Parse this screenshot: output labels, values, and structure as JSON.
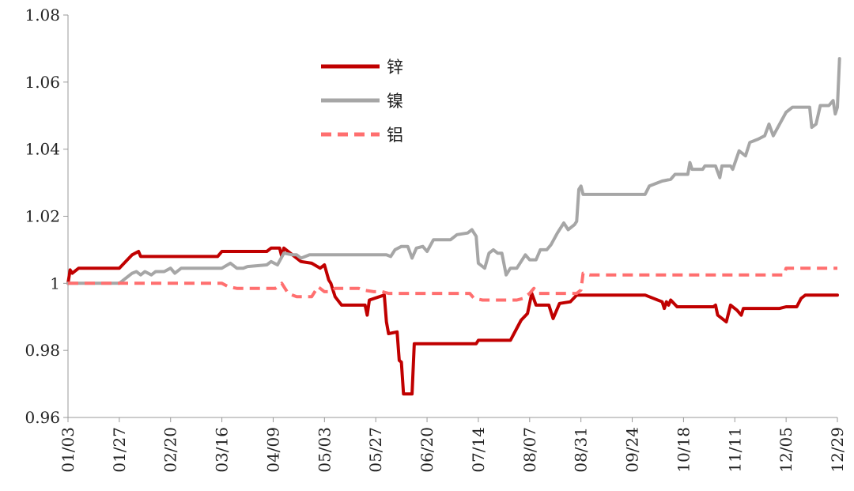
{
  "chart_data": {
    "type": "line",
    "title": "",
    "xlabel": "",
    "ylabel": "",
    "ylim": [
      0.96,
      1.08
    ],
    "yticks": [
      0.96,
      0.98,
      1,
      1.02,
      1.04,
      1.06,
      1.08
    ],
    "ytick_labels": [
      "0.96",
      "0.98",
      "1",
      "1.02",
      "1.04",
      "1.06",
      "1.08"
    ],
    "x_ticks": [
      "01/03",
      "01/27",
      "02/20",
      "03/16",
      "04/09",
      "05/03",
      "05/27",
      "06/20",
      "07/14",
      "08/07",
      "08/31",
      "09/24",
      "10/18",
      "11/11",
      "12/05",
      "12/29"
    ],
    "grid": false,
    "legend_position": "top-center",
    "series": [
      {
        "name": "锌",
        "color": "#c00000",
        "dash": "solid",
        "points": [
          [
            "01/03",
            1.0
          ],
          [
            "01/04",
            1.004
          ],
          [
            "01/05",
            1.003
          ],
          [
            "01/08",
            1.0045
          ],
          [
            "01/27",
            1.0045
          ],
          [
            "02/02",
            1.0085
          ],
          [
            "02/05",
            1.0095
          ],
          [
            "02/06",
            1.008
          ],
          [
            "03/14",
            1.008
          ],
          [
            "03/16",
            1.0095
          ],
          [
            "04/06",
            1.0095
          ],
          [
            "04/08",
            1.0105
          ],
          [
            "04/12",
            1.0105
          ],
          [
            "04/13",
            1.008
          ],
          [
            "04/14",
            1.0105
          ],
          [
            "04/18",
            1.0085
          ],
          [
            "04/22",
            1.0065
          ],
          [
            "04/27",
            1.006
          ],
          [
            "05/01",
            1.0045
          ],
          [
            "05/03",
            1.0055
          ],
          [
            "05/05",
            1.001
          ],
          [
            "05/06",
            1.0
          ],
          [
            "05/08",
            0.996
          ],
          [
            "05/11",
            0.9935
          ],
          [
            "05/22",
            0.9935
          ],
          [
            "05/23",
            0.9905
          ],
          [
            "05/24",
            0.995
          ],
          [
            "05/31",
            0.9965
          ],
          [
            "06/01",
            0.9885
          ],
          [
            "06/02",
            0.985
          ],
          [
            "06/06",
            0.9855
          ],
          [
            "06/07",
            0.977
          ],
          [
            "06/08",
            0.9765
          ],
          [
            "06/09",
            0.967
          ],
          [
            "06/13",
            0.967
          ],
          [
            "06/14",
            0.982
          ],
          [
            "07/13",
            0.982
          ],
          [
            "07/14",
            0.983
          ],
          [
            "07/29",
            0.983
          ],
          [
            "08/03",
            0.989
          ],
          [
            "08/06",
            0.991
          ],
          [
            "08/08",
            0.997
          ],
          [
            "08/10",
            0.9935
          ],
          [
            "08/16",
            0.9935
          ],
          [
            "08/18",
            0.9895
          ],
          [
            "08/21",
            0.994
          ],
          [
            "08/26",
            0.9945
          ],
          [
            "08/29",
            0.9965
          ],
          [
            "08/31",
            0.9965
          ],
          [
            "09/30",
            0.9965
          ],
          [
            "10/08",
            0.9945
          ],
          [
            "10/09",
            0.9925
          ],
          [
            "10/10",
            0.9945
          ],
          [
            "10/11",
            0.9935
          ],
          [
            "10/12",
            0.995
          ],
          [
            "10/15",
            0.993
          ],
          [
            "11/01",
            0.993
          ],
          [
            "11/02",
            0.9935
          ],
          [
            "11/03",
            0.9905
          ],
          [
            "11/07",
            0.9885
          ],
          [
            "11/09",
            0.9935
          ],
          [
            "11/12",
            0.992
          ],
          [
            "11/14",
            0.9905
          ],
          [
            "11/15",
            0.9925
          ],
          [
            "12/02",
            0.9925
          ],
          [
            "12/05",
            0.993
          ],
          [
            "12/10",
            0.993
          ],
          [
            "12/12",
            0.9955
          ],
          [
            "12/14",
            0.9965
          ],
          [
            "12/29",
            0.9965
          ]
        ]
      },
      {
        "name": "镍",
        "color": "#a6a6a6",
        "dash": "solid",
        "points": [
          [
            "01/03",
            1.0
          ],
          [
            "01/27",
            1.0
          ],
          [
            "02/02",
            1.003
          ],
          [
            "02/04",
            1.0035
          ],
          [
            "02/06",
            1.0025
          ],
          [
            "02/08",
            1.0035
          ],
          [
            "02/11",
            1.0025
          ],
          [
            "02/13",
            1.0035
          ],
          [
            "02/17",
            1.0035
          ],
          [
            "02/20",
            1.0045
          ],
          [
            "02/22",
            1.003
          ],
          [
            "02/25",
            1.0045
          ],
          [
            "03/16",
            1.0045
          ],
          [
            "03/20",
            1.006
          ],
          [
            "03/23",
            1.0045
          ],
          [
            "03/26",
            1.0045
          ],
          [
            "03/28",
            1.005
          ],
          [
            "04/06",
            1.0055
          ],
          [
            "04/08",
            1.0065
          ],
          [
            "04/11",
            1.0055
          ],
          [
            "04/14",
            1.009
          ],
          [
            "04/18",
            1.0085
          ],
          [
            "04/20",
            1.0085
          ],
          [
            "04/22",
            1.0075
          ],
          [
            "04/26",
            1.0085
          ],
          [
            "05/03",
            1.0085
          ],
          [
            "05/30",
            1.0085
          ],
          [
            "06/01",
            1.0085
          ],
          [
            "06/03",
            1.008
          ],
          [
            "06/05",
            1.01
          ],
          [
            "06/08",
            1.011
          ],
          [
            "06/11",
            1.011
          ],
          [
            "06/13",
            1.0075
          ],
          [
            "06/15",
            1.0105
          ],
          [
            "06/18",
            1.011
          ],
          [
            "06/20",
            1.0095
          ],
          [
            "06/23",
            1.013
          ],
          [
            "06/26",
            1.013
          ],
          [
            "07/01",
            1.013
          ],
          [
            "07/04",
            1.0145
          ],
          [
            "07/09",
            1.015
          ],
          [
            "07/11",
            1.016
          ],
          [
            "07/13",
            1.014
          ],
          [
            "07/14",
            1.006
          ],
          [
            "07/17",
            1.0045
          ],
          [
            "07/19",
            1.009
          ],
          [
            "07/21",
            1.01
          ],
          [
            "07/23",
            1.009
          ],
          [
            "07/25",
            1.009
          ],
          [
            "07/27",
            1.0025
          ],
          [
            "07/29",
            1.0045
          ],
          [
            "08/01",
            1.0045
          ],
          [
            "08/05",
            1.0085
          ],
          [
            "08/07",
            1.007
          ],
          [
            "08/10",
            1.007
          ],
          [
            "08/12",
            1.01
          ],
          [
            "08/15",
            1.01
          ],
          [
            "08/17",
            1.0115
          ],
          [
            "08/20",
            1.015
          ],
          [
            "08/23",
            1.018
          ],
          [
            "08/25",
            1.016
          ],
          [
            "08/28",
            1.0175
          ],
          [
            "08/29",
            1.0185
          ],
          [
            "08/30",
            1.028
          ],
          [
            "08/31",
            1.029
          ],
          [
            "09/01",
            1.0265
          ],
          [
            "09/30",
            1.0265
          ],
          [
            "10/02",
            1.029
          ],
          [
            "10/08",
            1.0305
          ],
          [
            "10/12",
            1.031
          ],
          [
            "10/14",
            1.0325
          ],
          [
            "10/20",
            1.0325
          ],
          [
            "10/21",
            1.036
          ],
          [
            "10/22",
            1.034
          ],
          [
            "10/27",
            1.034
          ],
          [
            "10/28",
            1.035
          ],
          [
            "11/02",
            1.035
          ],
          [
            "11/04",
            1.0315
          ],
          [
            "11/05",
            1.035
          ],
          [
            "11/09",
            1.035
          ],
          [
            "11/10",
            1.034
          ],
          [
            "11/13",
            1.0395
          ],
          [
            "11/16",
            1.038
          ],
          [
            "11/18",
            1.042
          ],
          [
            "11/22",
            1.043
          ],
          [
            "11/25",
            1.044
          ],
          [
            "11/27",
            1.0475
          ],
          [
            "11/29",
            1.044
          ],
          [
            "12/05",
            1.051
          ],
          [
            "12/08",
            1.0525
          ],
          [
            "12/14",
            1.0525
          ],
          [
            "12/16",
            1.0525
          ],
          [
            "12/17",
            1.0465
          ],
          [
            "12/19",
            1.0475
          ],
          [
            "12/21",
            1.053
          ],
          [
            "12/25",
            1.053
          ],
          [
            "12/27",
            1.0545
          ],
          [
            "12/28",
            1.0505
          ],
          [
            "12/29",
            1.0525
          ],
          [
            "12/30",
            1.067
          ]
        ]
      },
      {
        "name": "铝",
        "color": "#ff6f6f",
        "dash": "dashed",
        "points": [
          [
            "01/03",
            1.0
          ],
          [
            "03/16",
            1.0
          ],
          [
            "03/19",
            0.999
          ],
          [
            "03/23",
            0.9985
          ],
          [
            "04/10",
            0.9985
          ],
          [
            "04/13",
            1.0
          ],
          [
            "04/16",
            0.997
          ],
          [
            "04/20",
            0.996
          ],
          [
            "04/27",
            0.996
          ],
          [
            "04/30",
            0.999
          ],
          [
            "05/03",
            0.9975
          ],
          [
            "05/06",
            0.9975
          ],
          [
            "05/08",
            0.9985
          ],
          [
            "05/19",
            0.9985
          ],
          [
            "05/21",
            0.998
          ],
          [
            "05/26",
            0.9975
          ],
          [
            "05/30",
            0.9975
          ],
          [
            "06/02",
            0.997
          ],
          [
            "07/10",
            0.997
          ],
          [
            "07/12",
            0.9955
          ],
          [
            "07/16",
            0.995
          ],
          [
            "08/01",
            0.995
          ],
          [
            "08/04",
            0.9955
          ],
          [
            "08/06",
            0.9965
          ],
          [
            "08/07",
            0.997
          ],
          [
            "08/09",
            0.9985
          ],
          [
            "08/11",
            0.997
          ],
          [
            "08/29",
            0.997
          ],
          [
            "08/31",
            0.998
          ],
          [
            "09/01",
            1.003
          ],
          [
            "09/04",
            1.0025
          ],
          [
            "12/01",
            1.0025
          ],
          [
            "12/04",
            1.0025
          ],
          [
            "12/05",
            1.0045
          ],
          [
            "12/29",
            1.0045
          ]
        ]
      }
    ]
  }
}
